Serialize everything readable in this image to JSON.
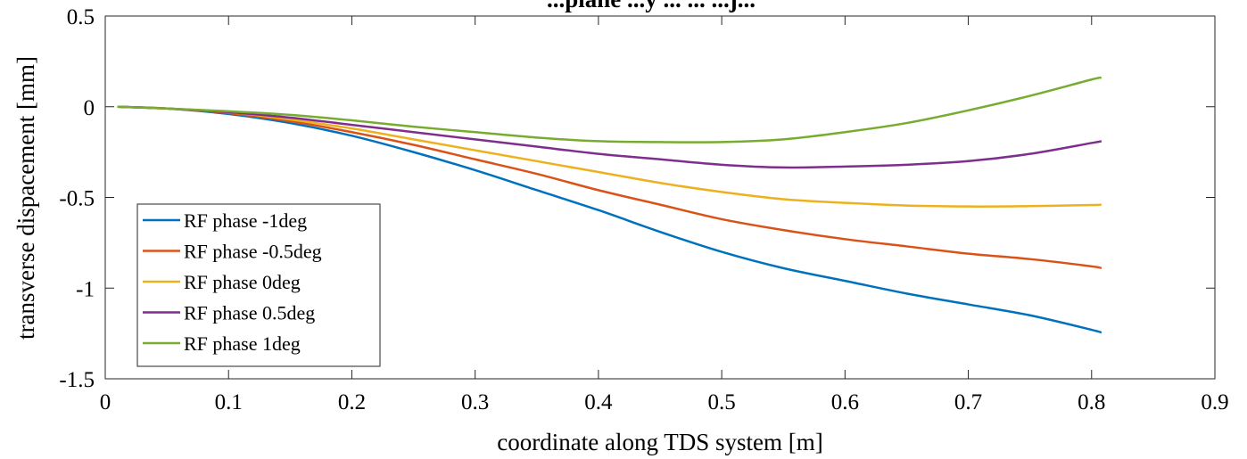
{
  "chart_data": {
    "type": "line",
    "title": "...plane ...y ... ... ...j...",
    "xlabel": "coordinate along TDS system [m]",
    "ylabel": "transverse dispacement [mm]",
    "xlim": [
      0,
      0.9
    ],
    "ylim": [
      -1.5,
      0.5
    ],
    "xticks": [
      "0",
      "0.1",
      "0.2",
      "0.3",
      "0.4",
      "0.5",
      "0.6",
      "0.7",
      "0.8",
      "0.9"
    ],
    "yticks": [
      "0.5",
      "0",
      "-0.5",
      "-1",
      "-1.5"
    ],
    "grid": false,
    "legend_position": "bottom-left",
    "x": [
      0.01,
      0.05,
      0.1,
      0.15,
      0.2,
      0.25,
      0.3,
      0.35,
      0.4,
      0.45,
      0.5,
      0.55,
      0.6,
      0.65,
      0.7,
      0.75,
      0.8,
      0.808
    ],
    "series": [
      {
        "name": "RF phase -1deg",
        "color": "#0072BD",
        "values": [
          0,
          -0.01,
          -0.04,
          -0.09,
          -0.16,
          -0.25,
          -0.35,
          -0.46,
          -0.57,
          -0.69,
          -0.8,
          -0.89,
          -0.96,
          -1.03,
          -1.09,
          -1.15,
          -1.23,
          -1.245
        ]
      },
      {
        "name": "RF phase -0.5deg",
        "color": "#D95319",
        "values": [
          0,
          -0.01,
          -0.035,
          -0.08,
          -0.14,
          -0.21,
          -0.29,
          -0.37,
          -0.46,
          -0.54,
          -0.62,
          -0.68,
          -0.73,
          -0.77,
          -0.81,
          -0.84,
          -0.88,
          -0.89
        ]
      },
      {
        "name": "RF phase 0deg",
        "color": "#EDB120",
        "values": [
          0,
          -0.01,
          -0.03,
          -0.07,
          -0.12,
          -0.18,
          -0.24,
          -0.3,
          -0.36,
          -0.42,
          -0.47,
          -0.51,
          -0.53,
          -0.545,
          -0.55,
          -0.548,
          -0.542,
          -0.54
        ]
      },
      {
        "name": "RF phase 0.5deg",
        "color": "#7E2F8E",
        "values": [
          0,
          -0.01,
          -0.03,
          -0.06,
          -0.1,
          -0.14,
          -0.18,
          -0.22,
          -0.26,
          -0.29,
          -0.32,
          -0.335,
          -0.33,
          -0.32,
          -0.3,
          -0.26,
          -0.2,
          -0.19
        ]
      },
      {
        "name": "RF phase 1deg",
        "color": "#77AC30",
        "values": [
          0,
          -0.01,
          -0.025,
          -0.045,
          -0.075,
          -0.11,
          -0.14,
          -0.17,
          -0.19,
          -0.195,
          -0.195,
          -0.18,
          -0.14,
          -0.09,
          -0.02,
          0.06,
          0.15,
          0.16
        ]
      }
    ]
  }
}
